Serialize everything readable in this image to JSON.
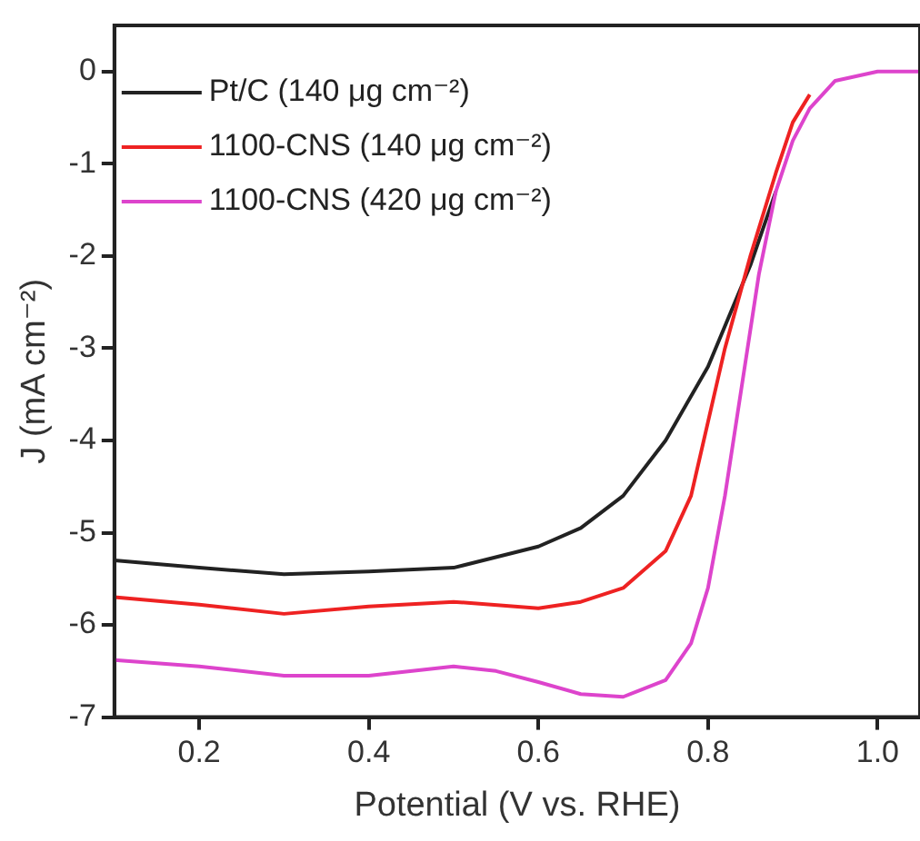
{
  "chart_data": {
    "type": "line",
    "xlabel": "Potential (V vs. RHE)",
    "ylabel": "J (mA cm⁻²)",
    "xlim": [
      0.1,
      1.05
    ],
    "xticks": [
      {
        "value": 0.2,
        "label": "0.2"
      },
      {
        "value": 0.4,
        "label": "0.4"
      },
      {
        "value": 0.6,
        "label": "0.6"
      },
      {
        "value": 0.8,
        "label": "0.8"
      },
      {
        "value": 1.0,
        "label": "1.0"
      }
    ],
    "ylim": [
      -7,
      0.5
    ],
    "yticks": [
      -7,
      -6,
      -5,
      -4,
      -3,
      -2,
      -1,
      0
    ],
    "grid": false,
    "legend": "top left",
    "marker": "none",
    "line_style": "solid",
    "series": [
      {
        "name": "Pt/C (140 μg cm⁻²)",
        "color": "#222222",
        "x": [
          0.1,
          0.2,
          0.3,
          0.4,
          0.5,
          0.6,
          0.65,
          0.7,
          0.75,
          0.8,
          0.85,
          0.88
        ],
        "values": [
          -5.3,
          -5.38,
          -5.45,
          -5.42,
          -5.38,
          -5.15,
          -4.95,
          -4.6,
          -4.0,
          -3.2,
          -2.1,
          -1.3
        ]
      },
      {
        "name": "1100-CNS (140 μg cm⁻²)",
        "color": "#ee2222",
        "x": [
          0.1,
          0.2,
          0.3,
          0.4,
          0.5,
          0.6,
          0.65,
          0.7,
          0.75,
          0.78,
          0.8,
          0.82,
          0.85,
          0.88,
          0.9,
          0.92
        ],
        "values": [
          -5.7,
          -5.78,
          -5.88,
          -5.8,
          -5.75,
          -5.82,
          -5.75,
          -5.6,
          -5.2,
          -4.6,
          -3.8,
          -3.0,
          -2.0,
          -1.1,
          -0.55,
          -0.25
        ]
      },
      {
        "name": "1100-CNS (420 μg cm⁻²)",
        "color": "#dd44cc",
        "x": [
          0.1,
          0.2,
          0.3,
          0.4,
          0.5,
          0.55,
          0.6,
          0.65,
          0.7,
          0.75,
          0.78,
          0.8,
          0.82,
          0.84,
          0.86,
          0.88,
          0.9,
          0.92,
          0.95,
          1.0,
          1.05
        ],
        "values": [
          -6.38,
          -6.45,
          -6.55,
          -6.55,
          -6.45,
          -6.5,
          -6.62,
          -6.75,
          -6.78,
          -6.6,
          -6.2,
          -5.6,
          -4.6,
          -3.4,
          -2.2,
          -1.3,
          -0.75,
          -0.4,
          -0.1,
          0,
          0
        ]
      }
    ]
  }
}
